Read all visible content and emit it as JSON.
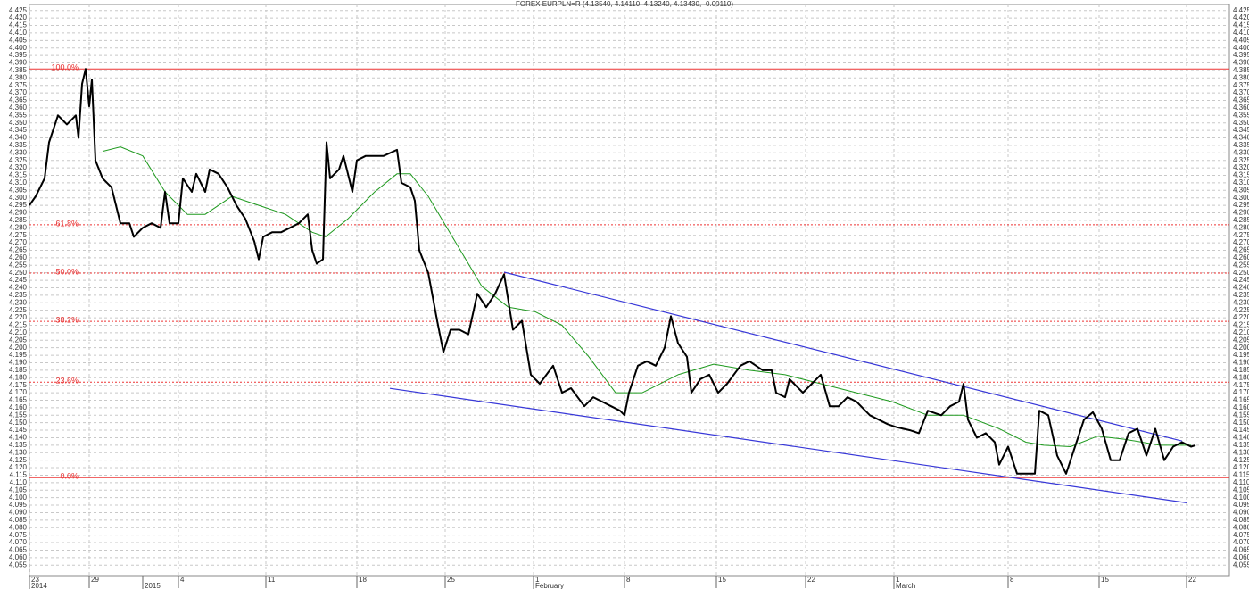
{
  "chart_data": {
    "type": "line",
    "title": "FOREX EURPLN=R (4.13540, 4.14110, 4.13240, 4.13430, -0.00110)",
    "xlim": [
      0,
      1345
    ],
    "ylim": [
      4.048,
      4.429
    ],
    "grid": true,
    "xticks": [
      {
        "value": 0,
        "label": "23"
      },
      {
        "value": 67,
        "label": "29"
      },
      {
        "value": 167,
        "label": "4"
      },
      {
        "value": 265,
        "label": "11"
      },
      {
        "value": 367,
        "label": "18"
      },
      {
        "value": 466,
        "label": "25"
      },
      {
        "value": 565,
        "label": "1"
      },
      {
        "value": 667,
        "label": "8"
      },
      {
        "value": 770,
        "label": "15"
      },
      {
        "value": 870,
        "label": "22"
      },
      {
        "value": 969,
        "label": "1"
      },
      {
        "value": 1097,
        "label": "8"
      },
      {
        "value": 1199,
        "label": "15"
      },
      {
        "value": 1297,
        "label": "22"
      }
    ],
    "xlabels2": [
      {
        "value": 0,
        "label": "2014"
      },
      {
        "value": 127,
        "label": "2015"
      },
      {
        "value": 565,
        "label": "February"
      },
      {
        "value": 969,
        "label": "March"
      }
    ],
    "yticks": [
      {
        "value": 4.055,
        "label": "4.055"
      },
      {
        "value": 4.06,
        "label": "4.060"
      },
      {
        "value": 4.065,
        "label": "4.065"
      },
      {
        "value": 4.07,
        "label": "4.070"
      },
      {
        "value": 4.075,
        "label": "4.075"
      },
      {
        "value": 4.08,
        "label": "4.080"
      },
      {
        "value": 4.085,
        "label": "4.085"
      },
      {
        "value": 4.09,
        "label": "4.090"
      },
      {
        "value": 4.095,
        "label": "4.095"
      },
      {
        "value": 4.1,
        "label": "4.100"
      },
      {
        "value": 4.105,
        "label": "4.105"
      },
      {
        "value": 4.11,
        "label": "4.110"
      },
      {
        "value": 4.115,
        "label": "4.115"
      },
      {
        "value": 4.12,
        "label": "4.120"
      },
      {
        "value": 4.125,
        "label": "4.125"
      },
      {
        "value": 4.13,
        "label": "4.130"
      },
      {
        "value": 4.135,
        "label": "4.135"
      },
      {
        "value": 4.14,
        "label": "4.140"
      },
      {
        "value": 4.145,
        "label": "4.145"
      },
      {
        "value": 4.15,
        "label": "4.150"
      },
      {
        "value": 4.155,
        "label": "4.155"
      },
      {
        "value": 4.16,
        "label": "4.160"
      },
      {
        "value": 4.165,
        "label": "4.165"
      },
      {
        "value": 4.17,
        "label": "4.170"
      },
      {
        "value": 4.175,
        "label": "4.175"
      },
      {
        "value": 4.18,
        "label": "4.180"
      },
      {
        "value": 4.185,
        "label": "4.185"
      },
      {
        "value": 4.19,
        "label": "4.190"
      },
      {
        "value": 4.195,
        "label": "4.195"
      },
      {
        "value": 4.2,
        "label": "4.200"
      },
      {
        "value": 4.205,
        "label": "4.205"
      },
      {
        "value": 4.21,
        "label": "4.210"
      },
      {
        "value": 4.215,
        "label": "4.215"
      },
      {
        "value": 4.22,
        "label": "4.220"
      },
      {
        "value": 4.225,
        "label": "4.225"
      },
      {
        "value": 4.23,
        "label": "4.230"
      },
      {
        "value": 4.235,
        "label": "4.235"
      },
      {
        "value": 4.24,
        "label": "4.240"
      },
      {
        "value": 4.245,
        "label": "4.245"
      },
      {
        "value": 4.25,
        "label": "4.250"
      },
      {
        "value": 4.255,
        "label": "4.255"
      },
      {
        "value": 4.26,
        "label": "4.260"
      },
      {
        "value": 4.265,
        "label": "4.265"
      },
      {
        "value": 4.27,
        "label": "4.270"
      },
      {
        "value": 4.275,
        "label": "4.275"
      },
      {
        "value": 4.28,
        "label": "4.280"
      },
      {
        "value": 4.285,
        "label": "4.285"
      },
      {
        "value": 4.29,
        "label": "4.290"
      },
      {
        "value": 4.295,
        "label": "4.295"
      },
      {
        "value": 4.3,
        "label": "4.300"
      },
      {
        "value": 4.305,
        "label": "4.305"
      },
      {
        "value": 4.31,
        "label": "4.310"
      },
      {
        "value": 4.315,
        "label": "4.315"
      },
      {
        "value": 4.32,
        "label": "4.320"
      },
      {
        "value": 4.325,
        "label": "4.325"
      },
      {
        "value": 4.33,
        "label": "4.330"
      },
      {
        "value": 4.335,
        "label": "4.335"
      },
      {
        "value": 4.34,
        "label": "4.340"
      },
      {
        "value": 4.345,
        "label": "4.345"
      },
      {
        "value": 4.35,
        "label": "4.350"
      },
      {
        "value": 4.355,
        "label": "4.355"
      },
      {
        "value": 4.36,
        "label": "4.360"
      },
      {
        "value": 4.365,
        "label": "4.365"
      },
      {
        "value": 4.37,
        "label": "4.370"
      },
      {
        "value": 4.375,
        "label": "4.375"
      },
      {
        "value": 4.38,
        "label": "4.380"
      },
      {
        "value": 4.385,
        "label": "4.385"
      },
      {
        "value": 4.39,
        "label": "4.390"
      },
      {
        "value": 4.395,
        "label": "4.395"
      },
      {
        "value": 4.4,
        "label": "4.400"
      },
      {
        "value": 4.405,
        "label": "4.405"
      },
      {
        "value": 4.41,
        "label": "4.410"
      },
      {
        "value": 4.415,
        "label": "4.415"
      },
      {
        "value": 4.42,
        "label": "4.420"
      },
      {
        "value": 4.425,
        "label": "4.425"
      }
    ],
    "series": [
      {
        "color": "#000000",
        "width": 2,
        "x": [
          0,
          7,
          17,
          22,
          32,
          42,
          52,
          55,
          59,
          63,
          67,
          70,
          74,
          82,
          92,
          102,
          112,
          117,
          127,
          137,
          147,
          152,
          157,
          167,
          172,
          182,
          187,
          197,
          202,
          212,
          222,
          232,
          242,
          252,
          257,
          262,
          272,
          282,
          292,
          302,
          312,
          317,
          322,
          329,
          333,
          337,
          347,
          352,
          362,
          367,
          377,
          387,
          397,
          412,
          417,
          427,
          432,
          437,
          447,
          457,
          464,
          472,
          482,
          492,
          502,
          512,
          522,
          532,
          542,
          552,
          562,
          572,
          587,
          597,
          607,
          622,
          632,
          642,
          652,
          662,
          667,
          672,
          682,
          692,
          702,
          712,
          719,
          727,
          737,
          742,
          752,
          762,
          772,
          782,
          797,
          807,
          822,
          832,
          837,
          847,
          852,
          867,
          877,
          887,
          897,
          907,
          917,
          927,
          942,
          952,
          962,
          972,
          987,
          997,
          1007,
          1022,
          1032,
          1042,
          1047,
          1052,
          1062,
          1072,
          1082,
          1087,
          1097,
          1107,
          1117,
          1127,
          1132,
          1142,
          1152,
          1162,
          1172,
          1182,
          1192,
          1202,
          1212,
          1222,
          1232,
          1242,
          1252,
          1262,
          1272,
          1282,
          1292,
          1302,
          1307
        ],
        "values": [
          4.295,
          4.301,
          4.313,
          4.337,
          4.355,
          4.349,
          4.355,
          4.34,
          4.376,
          4.386,
          4.361,
          4.379,
          4.325,
          4.313,
          4.307,
          4.283,
          4.283,
          4.274,
          4.28,
          4.283,
          4.28,
          4.304,
          4.283,
          4.283,
          4.313,
          4.304,
          4.316,
          4.304,
          4.319,
          4.316,
          4.307,
          4.295,
          4.286,
          4.271,
          4.259,
          4.274,
          4.277,
          4.277,
          4.28,
          4.283,
          4.289,
          4.265,
          4.256,
          4.259,
          4.337,
          4.313,
          4.319,
          4.328,
          4.304,
          4.325,
          4.328,
          4.328,
          4.328,
          4.332,
          4.31,
          4.307,
          4.298,
          4.265,
          4.25,
          4.218,
          4.197,
          4.212,
          4.212,
          4.209,
          4.236,
          4.227,
          4.236,
          4.249,
          4.212,
          4.218,
          4.182,
          4.176,
          4.188,
          4.17,
          4.173,
          4.161,
          4.167,
          4.164,
          4.161,
          4.158,
          4.155,
          4.17,
          4.188,
          4.191,
          4.188,
          4.2,
          4.221,
          4.203,
          4.194,
          4.17,
          4.179,
          4.182,
          4.17,
          4.176,
          4.188,
          4.191,
          4.185,
          4.185,
          4.17,
          4.167,
          4.179,
          4.17,
          4.176,
          4.182,
          4.161,
          4.161,
          4.167,
          4.164,
          4.155,
          4.152,
          4.149,
          4.147,
          4.145,
          4.143,
          4.158,
          4.155,
          4.161,
          4.164,
          4.176,
          4.152,
          4.14,
          4.143,
          4.137,
          4.122,
          4.134,
          4.116,
          4.116,
          4.116,
          4.158,
          4.155,
          4.128,
          4.116,
          4.134,
          4.152,
          4.157,
          4.146,
          4.125,
          4.125,
          4.143,
          4.146,
          4.128,
          4.146,
          4.125,
          4.134,
          4.137,
          4.134,
          4.135
        ]
      },
      {
        "color": "#1f9a1f",
        "width": 1,
        "x": [
          82,
          102,
          127,
          152,
          177,
          197,
          227,
          257,
          287,
          317,
          332,
          357,
          387,
          412,
          427,
          447,
          477,
          507,
          537,
          567,
          597,
          627,
          657,
          687,
          727,
          767,
          807,
          847,
          887,
          927,
          967,
          1007,
          1047,
          1087,
          1117,
          1137,
          1167,
          1197,
          1227,
          1267,
          1302
        ],
        "values": [
          4.331,
          4.334,
          4.328,
          4.304,
          4.289,
          4.289,
          4.301,
          4.295,
          4.289,
          4.277,
          4.274,
          4.286,
          4.304,
          4.316,
          4.316,
          4.301,
          4.271,
          4.241,
          4.227,
          4.224,
          4.215,
          4.194,
          4.17,
          4.17,
          4.182,
          4.189,
          4.185,
          4.182,
          4.176,
          4.17,
          4.164,
          4.155,
          4.155,
          4.146,
          4.137,
          4.135,
          4.134,
          4.141,
          4.139,
          4.135,
          4.135
        ]
      }
    ],
    "trend_lines": [
      {
        "color": "#3838d8",
        "x": [
          532,
          1292
        ],
        "values": [
          4.2504,
          4.1378
        ]
      },
      {
        "color": "#3838d8",
        "x": [
          404,
          1297
        ],
        "values": [
          4.1729,
          4.0966
        ]
      }
    ],
    "fib_color": "#ee3333",
    "fib_levels": [
      {
        "label": "100.0%",
        "value": 4.386,
        "style": "solid"
      },
      {
        "label": "61.8%",
        "value": 4.282,
        "style": "dotted"
      },
      {
        "label": "50.0%",
        "value": 4.2498,
        "style": "dotted"
      },
      {
        "label": "38.2%",
        "value": 4.2176,
        "style": "dotted"
      },
      {
        "label": "23.6%",
        "value": 4.177,
        "style": "dotted"
      },
      {
        "label": "0.0%",
        "value": 4.1133,
        "style": "solid"
      }
    ]
  }
}
